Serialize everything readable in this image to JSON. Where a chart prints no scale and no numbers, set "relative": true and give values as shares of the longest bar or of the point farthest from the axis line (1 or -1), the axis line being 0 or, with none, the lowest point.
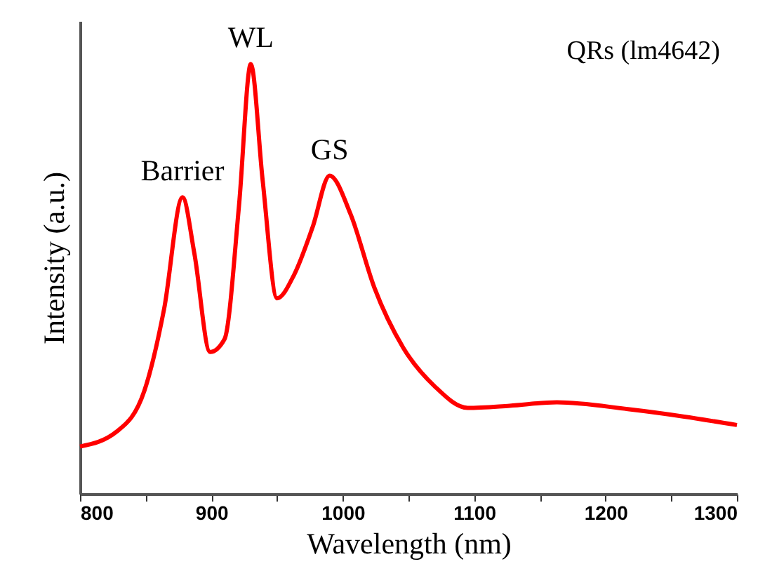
{
  "chart_data": {
    "type": "line",
    "relative": true,
    "xlabel": "Wavelength (nm)",
    "ylabel": "Intensity (a.u.)",
    "xlim": [
      800,
      1300
    ],
    "xticks": [
      800,
      {
        "value": 850,
        "label": null
      },
      900,
      {
        "value": 950,
        "label": null
      },
      1000,
      {
        "value": 1050,
        "label": null
      },
      1100,
      {
        "value": 1150,
        "label": null
      },
      1200,
      {
        "value": 1250,
        "label": null
      },
      1300
    ],
    "x": [
      800,
      828,
      849,
      864,
      878,
      887,
      899,
      910,
      921,
      930,
      939,
      950,
      963,
      977,
      990,
      1006,
      1024,
      1046,
      1070,
      1095,
      1127,
      1163,
      1217,
      1259,
      1300
    ],
    "series": [
      {
        "color": "#ff0000",
        "values": [
          0.11,
          0.145,
          0.24,
          0.43,
          0.69,
          0.56,
          0.33,
          0.36,
          0.67,
          1.0,
          0.73,
          0.455,
          0.51,
          0.62,
          0.74,
          0.65,
          0.48,
          0.34,
          0.25,
          0.2,
          0.205,
          0.213,
          0.197,
          0.18,
          0.16
        ]
      }
    ],
    "annotations": [
      {
        "text": "Barrier",
        "x": 878,
        "y": 0.69
      },
      {
        "text": "WL",
        "x": 930,
        "y": 1.0
      },
      {
        "text": "GS",
        "x": 990,
        "y": 0.74
      },
      "QRs (lm4642)"
    ],
    "grid": false,
    "marker": "none",
    "line_style": "solid"
  }
}
